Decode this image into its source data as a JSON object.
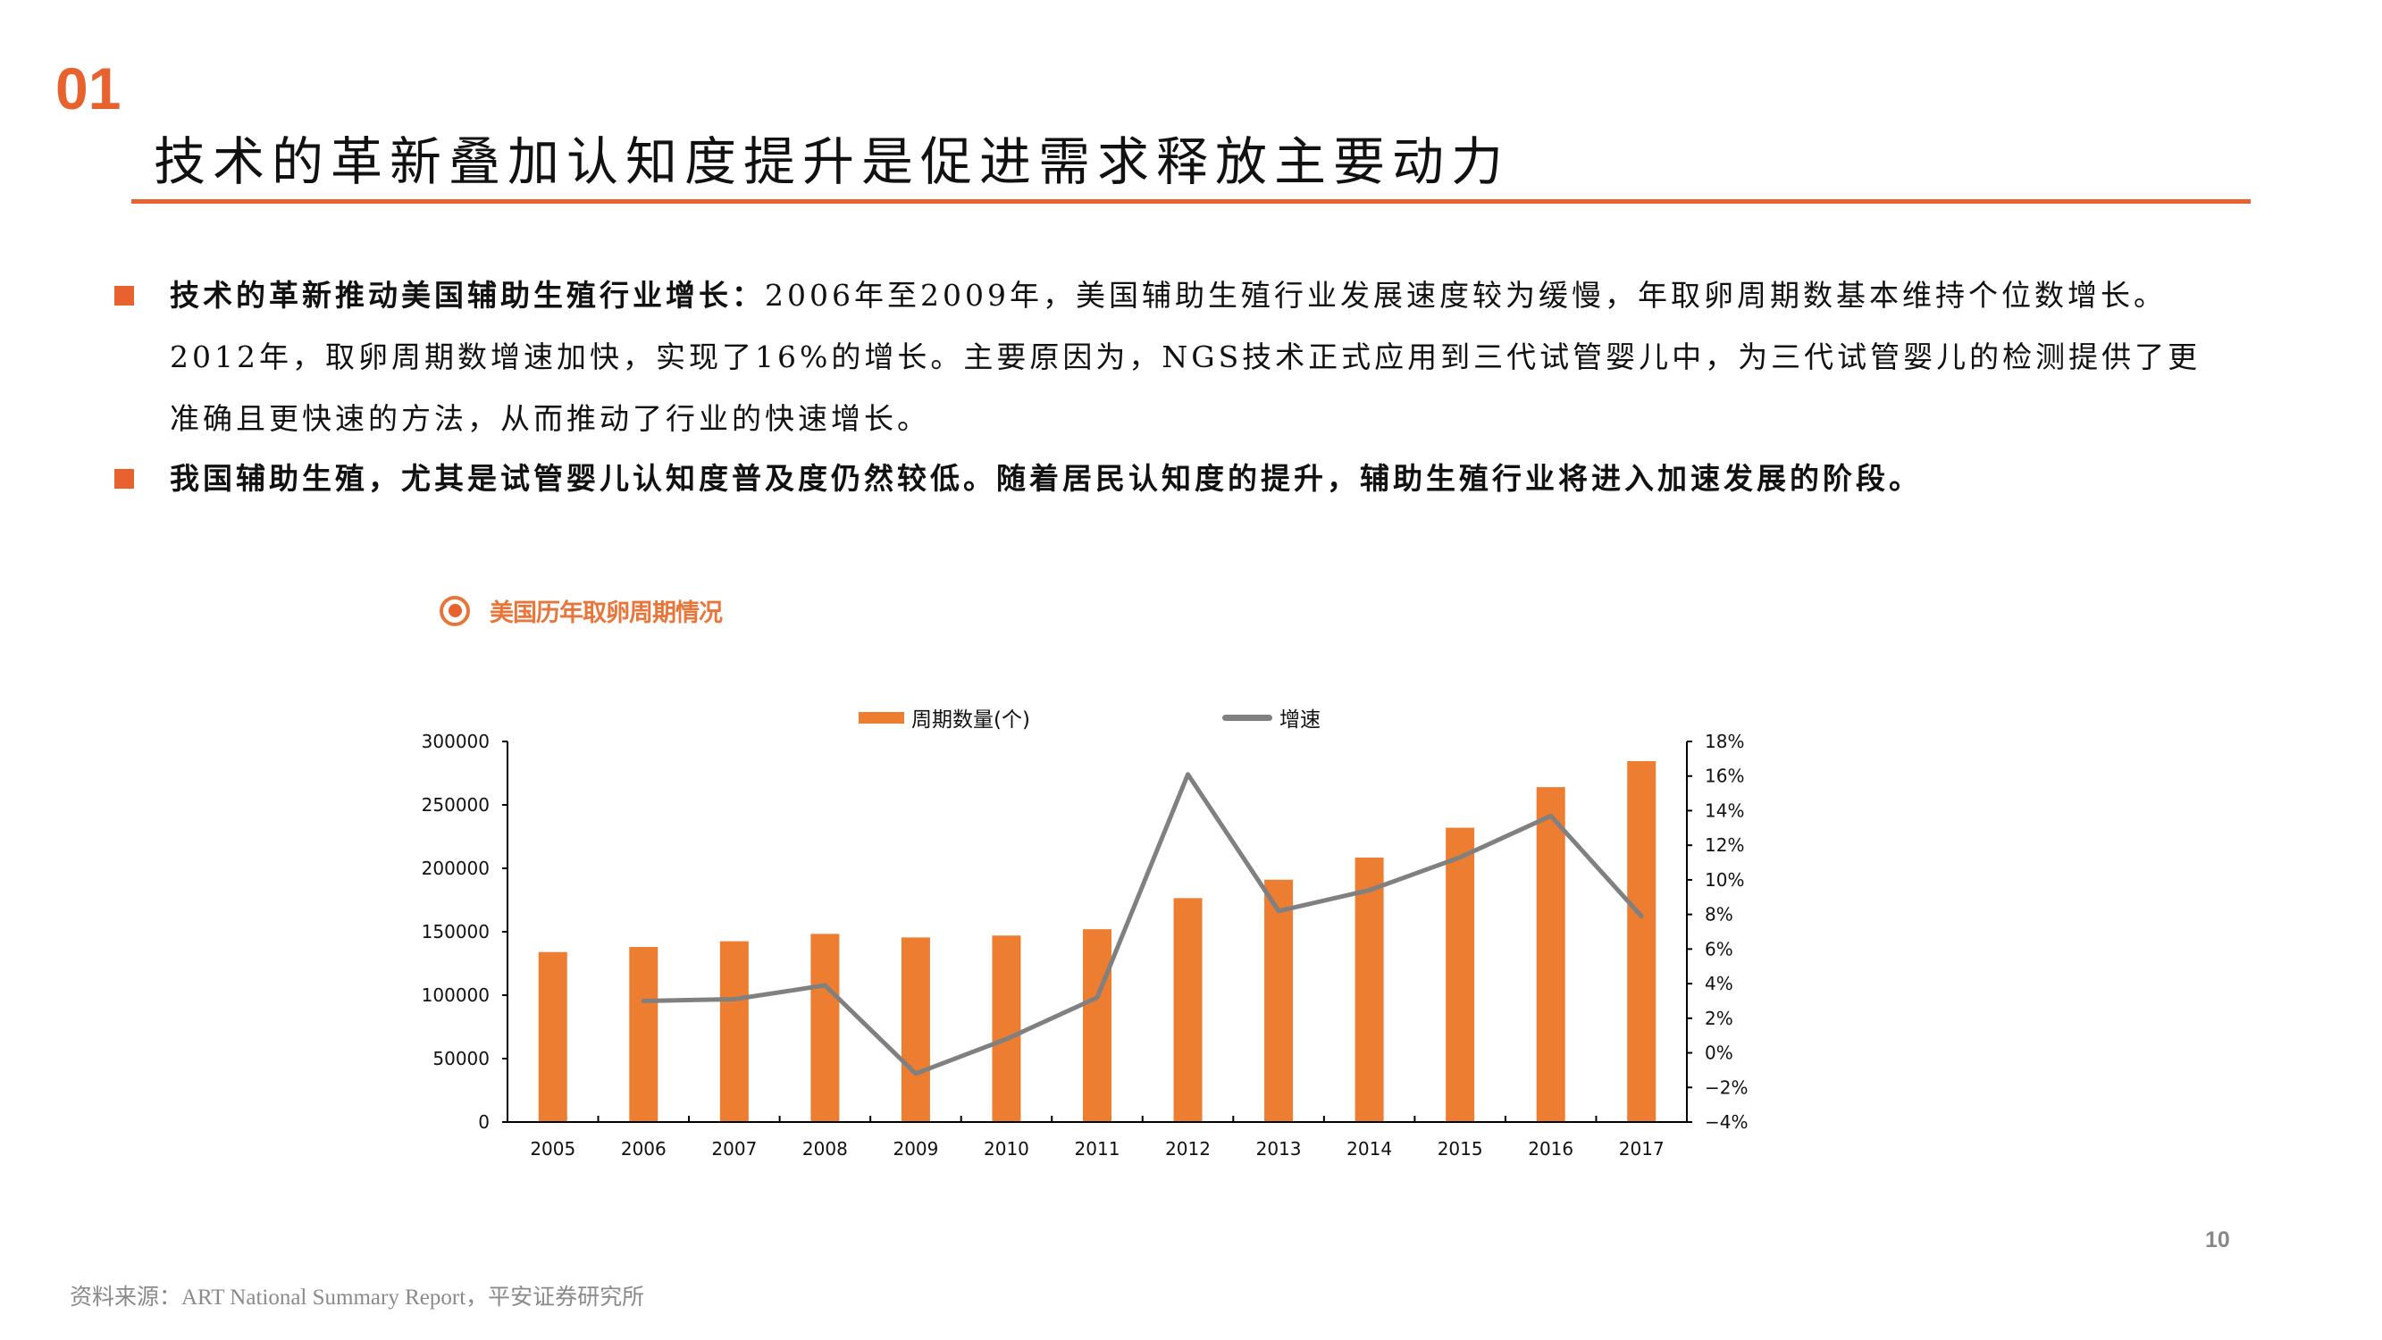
{
  "header": {
    "section_number": "01",
    "title": "技术的革新叠加认知度提升是促进需求释放主要动力"
  },
  "bullets": [
    {
      "bold_lead": "技术的革新推动美国辅助生殖行业增长：",
      "lines": [
        "2006年至2009年，美国辅助生殖行业发展速度较为缓慢，年取卵周期数基本维持个位数增长。",
        "2012年，取卵周期数增速加快，实现了16%的增长。主要原因为，NGS技术正式应用到三代试管婴儿中，为三代试管婴儿的检测提供了更",
        "准确且更快速的方法，从而推动了行业的快速增长。"
      ]
    },
    {
      "bold_lead": "我国辅助生殖，尤其是试管婴儿认知度普及度仍然较低。随着居民认知度的提升，辅助生殖行业将进入加速发展的阶段。",
      "lines": []
    }
  ],
  "chart": {
    "title": "美国历年取卵周期情况",
    "icon": "target-circle-icon",
    "legend": [
      {
        "label": "周期数量(个)",
        "type": "bar",
        "color": "#ED7D31"
      },
      {
        "label": "增速",
        "type": "line",
        "color": "#808080"
      }
    ]
  },
  "chart_data": {
    "type": "bar",
    "title": "美国历年取卵周期情况",
    "categories": [
      "2005",
      "2006",
      "2007",
      "2008",
      "2009",
      "2010",
      "2011",
      "2012",
      "2013",
      "2014",
      "2015",
      "2016",
      "2017"
    ],
    "series": [
      {
        "name": "周期数量(个)",
        "type": "bar",
        "axis": "left",
        "color": "#ED7D31",
        "values": [
          134000,
          138000,
          142500,
          148300,
          145500,
          147000,
          152000,
          176500,
          191000,
          208500,
          232000,
          264000,
          284500
        ]
      },
      {
        "name": "增速",
        "type": "line",
        "axis": "right",
        "color": "#808080",
        "values": [
          null,
          3.0,
          3.1,
          3.9,
          -1.2,
          0.8,
          3.2,
          16.1,
          8.2,
          9.4,
          11.3,
          13.7,
          7.9
        ]
      }
    ],
    "y_left": {
      "min": 0,
      "max": 300000,
      "ticks": [
        0,
        50000,
        100000,
        150000,
        200000,
        250000,
        300000
      ]
    },
    "y_right": {
      "min": -4,
      "max": 18,
      "ticks": [
        -4,
        -2,
        0,
        2,
        4,
        6,
        8,
        10,
        12,
        14,
        16,
        18
      ],
      "unit": "%"
    },
    "xlabel": "",
    "ylabel": "",
    "grid": false,
    "legend_position": "top"
  },
  "footer": {
    "source": "资料来源：ART National Summary Report，平安证券研究所",
    "page_number": "10"
  }
}
